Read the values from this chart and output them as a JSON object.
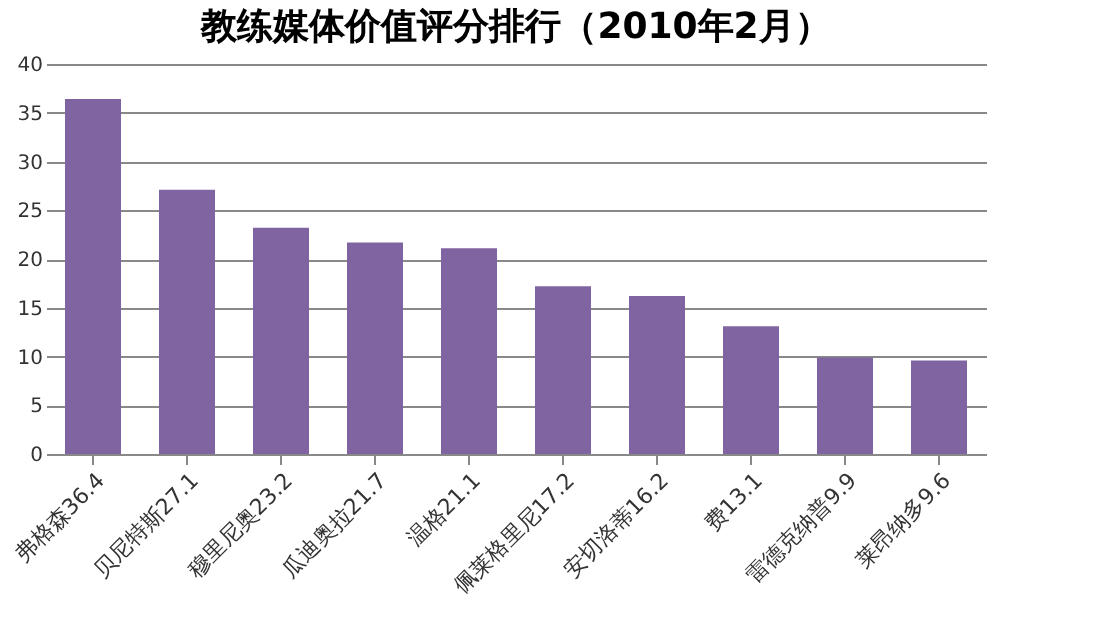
{
  "chart_data": {
    "type": "bar",
    "title": "教练媒体价值评分排行（2010年2月）",
    "categories": [
      "弗格森36.4",
      "贝尼特斯27.1",
      "穆里尼奥23.2",
      "瓜迪奥拉21.7",
      "温格21.1",
      "佩莱格里尼17.2",
      "安切洛蒂16.2",
      "费13.1",
      "雷德克纳普9.9",
      "莱昂纳多9.6"
    ],
    "values": [
      36.4,
      27.1,
      23.2,
      21.7,
      21.1,
      17.2,
      16.2,
      13.1,
      9.9,
      9.6
    ],
    "color": "#8064a2",
    "ylim": [
      0,
      40
    ],
    "yticks": [
      0,
      5,
      10,
      15,
      20,
      25,
      30,
      35,
      40
    ],
    "grid": "y"
  }
}
